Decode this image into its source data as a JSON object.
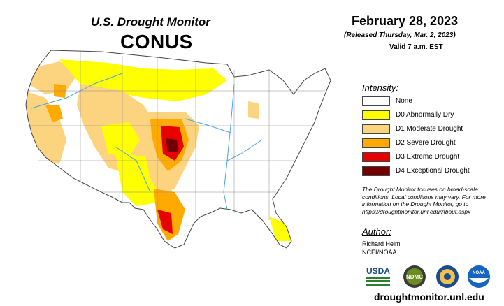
{
  "header": {
    "title": "U.S. Drought Monitor",
    "region": "CONUS",
    "date": "February 28, 2023",
    "released": "(Released Thursday, Mar. 2, 2023)",
    "valid": "Valid 7 a.m. EST"
  },
  "legend": {
    "title": "Intensity:",
    "items": [
      {
        "label": "None",
        "color": "#ffffff"
      },
      {
        "label": "D0 Abnormally Dry",
        "color": "#ffff00"
      },
      {
        "label": "D1 Moderate Drought",
        "color": "#fcd37f"
      },
      {
        "label": "D2 Severe Drought",
        "color": "#ffaa00"
      },
      {
        "label": "D3 Extreme Drought",
        "color": "#e60000"
      },
      {
        "label": "D4 Exceptional Drought",
        "color": "#730000"
      }
    ]
  },
  "note": "The Drought Monitor focuses on broad-scale conditions. Local conditions may vary. For more information on the Drought Monitor, go to https://droughtmonitor.unl.edu/About.aspx",
  "author": {
    "title": "Author:",
    "name": "Richard Heim",
    "org": "NCEI/NOAA"
  },
  "logos": {
    "usda": "USDA",
    "ndmc": "NDMC",
    "noaa": "NOAA"
  },
  "website": "droughtmonitor.unl.edu"
}
